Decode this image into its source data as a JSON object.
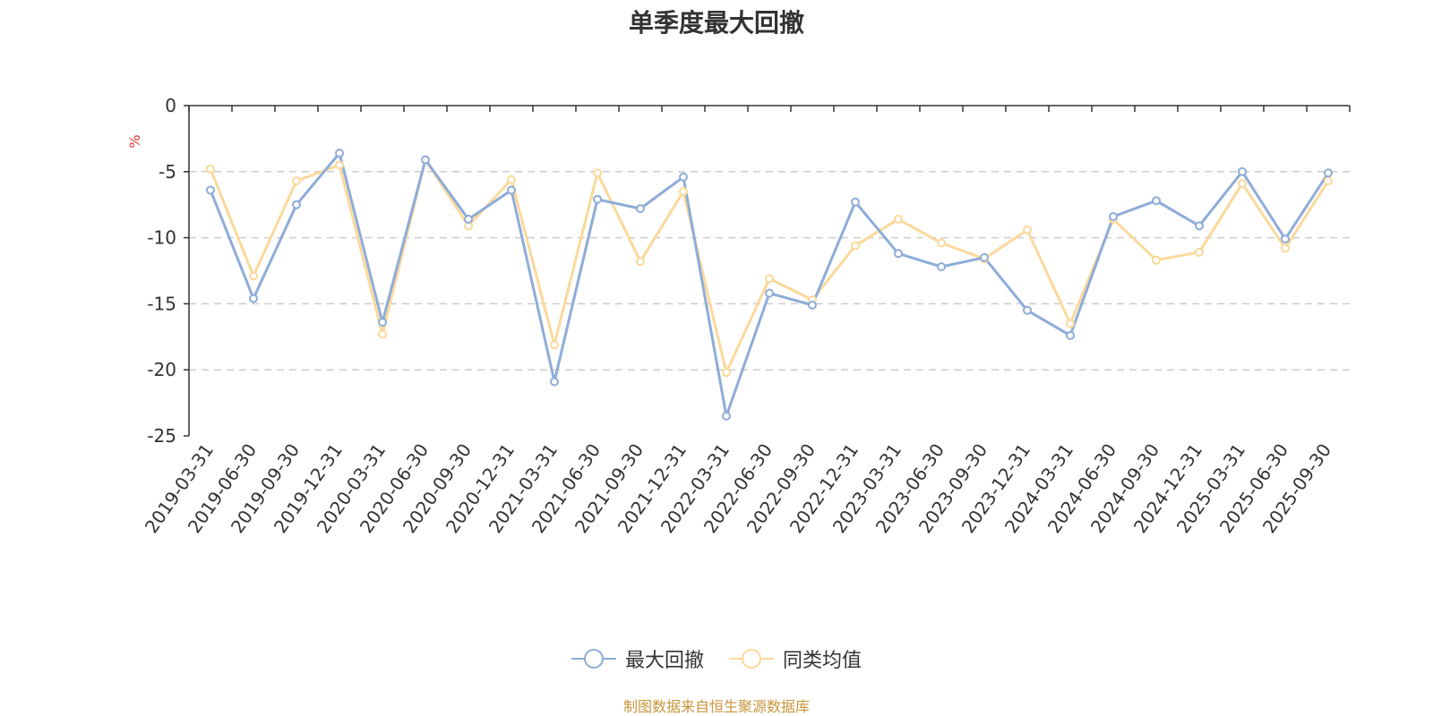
{
  "chart_data": {
    "type": "line",
    "title": "单季度最大回撤",
    "ylabel": "%",
    "ylim": [
      -25,
      0
    ],
    "yticks": [
      0,
      -5,
      -10,
      -15,
      -20,
      -25
    ],
    "grid": true,
    "legend_position": "bottom",
    "categories": [
      "2019-03-31",
      "2019-06-30",
      "2019-09-30",
      "2019-12-31",
      "2020-03-31",
      "2020-06-30",
      "2020-09-30",
      "2020-12-31",
      "2021-03-31",
      "2021-06-30",
      "2021-09-30",
      "2021-12-31",
      "2022-03-31",
      "2022-06-30",
      "2022-09-30",
      "2022-12-31",
      "2023-03-31",
      "2023-06-30",
      "2023-09-30",
      "2023-12-31",
      "2024-03-31",
      "2024-06-30",
      "2024-09-30",
      "2024-12-31",
      "2025-03-31",
      "2025-06-30",
      "2025-09-30"
    ],
    "series": [
      {
        "name": "最大回撤",
        "color": "#8eacd8",
        "values": [
          -6.4,
          -14.6,
          -7.5,
          -3.6,
          -16.4,
          -4.1,
          -8.6,
          -6.4,
          -20.9,
          -7.1,
          -7.8,
          -5.4,
          -23.5,
          -14.2,
          -15.1,
          -7.3,
          -11.2,
          -12.2,
          -11.5,
          -15.5,
          -17.4,
          -8.4,
          -7.2,
          -9.1,
          -5.0,
          -10.1,
          -5.1
        ]
      },
      {
        "name": "同类均值",
        "color": "#fbd99b",
        "values": [
          -4.8,
          -12.9,
          -5.7,
          -4.5,
          -17.3,
          -4.1,
          -9.1,
          -5.6,
          -18.1,
          -5.1,
          -11.8,
          -6.5,
          -20.2,
          -13.1,
          -14.7,
          -10.6,
          -8.6,
          -10.4,
          -11.6,
          -9.4,
          -16.5,
          -8.6,
          -11.7,
          -11.1,
          -5.9,
          -10.8,
          -5.7
        ]
      }
    ],
    "source_text": "制图数据来自恒生聚源数据库",
    "source_color": "#c8963c",
    "ylabel_color": "#e53935",
    "axis_text_color": "#333333"
  }
}
